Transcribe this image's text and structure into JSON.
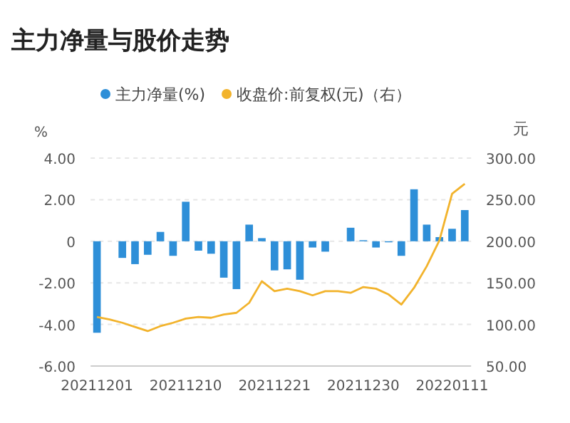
{
  "chart_data": {
    "type": "bar",
    "title": "主力净量与股价走势",
    "categories": [
      "20211201",
      null,
      null,
      null,
      null,
      null,
      null,
      "20211210",
      null,
      null,
      null,
      null,
      null,
      null,
      "20211221",
      null,
      null,
      null,
      null,
      null,
      null,
      "20211230",
      null,
      null,
      null,
      null,
      null,
      null,
      "20220111",
      null
    ],
    "series": [
      {
        "name": "主力净量(%)",
        "color": "#2e8fd8",
        "values": [
          -4.4,
          null,
          -0.8,
          -1.1,
          -0.65,
          0.45,
          -0.7,
          1.9,
          -0.45,
          -0.6,
          -1.75,
          -2.3,
          0.8,
          0.15,
          -1.4,
          -1.35,
          -1.85,
          -0.3,
          -0.5,
          null,
          0.65,
          0.05,
          -0.3,
          -0.05,
          -0.7,
          2.5,
          0.8,
          0.2,
          0.6,
          1.5
        ]
      },
      {
        "name": "收盘价:前复权(元)（右）",
        "type": "line",
        "axis": "y2",
        "color": "#f2b32c",
        "values": [
          109,
          106,
          102,
          97,
          92,
          98,
          102,
          107,
          109,
          108,
          112,
          114,
          126,
          152,
          140,
          143,
          140,
          135,
          140,
          140,
          138,
          145,
          143,
          136,
          124,
          144,
          170,
          201,
          257,
          269
        ]
      }
    ],
    "ylabel": "%",
    "y2label": "元",
    "ylim": [
      -6,
      4
    ],
    "yticks": [
      {
        "value": -6,
        "label": "-6.00"
      },
      {
        "value": -4,
        "label": "-4.00"
      },
      {
        "value": -2,
        "label": "-2.00"
      },
      0,
      {
        "value": 2,
        "label": "2.00"
      },
      {
        "value": 4,
        "label": "4.00"
      }
    ],
    "y2lim": [
      50,
      300
    ],
    "y2ticks": [
      {
        "value": 50,
        "label": "50.00"
      },
      {
        "value": 100,
        "label": "100.00"
      },
      {
        "value": 150,
        "label": "150.00"
      },
      {
        "value": 200,
        "label": "200.00"
      },
      {
        "value": 250,
        "label": "250.00"
      },
      {
        "value": 300,
        "label": "300.00"
      }
    ],
    "grid": "y",
    "legend": "top",
    "marker": "none",
    "line_style": "solid"
  }
}
